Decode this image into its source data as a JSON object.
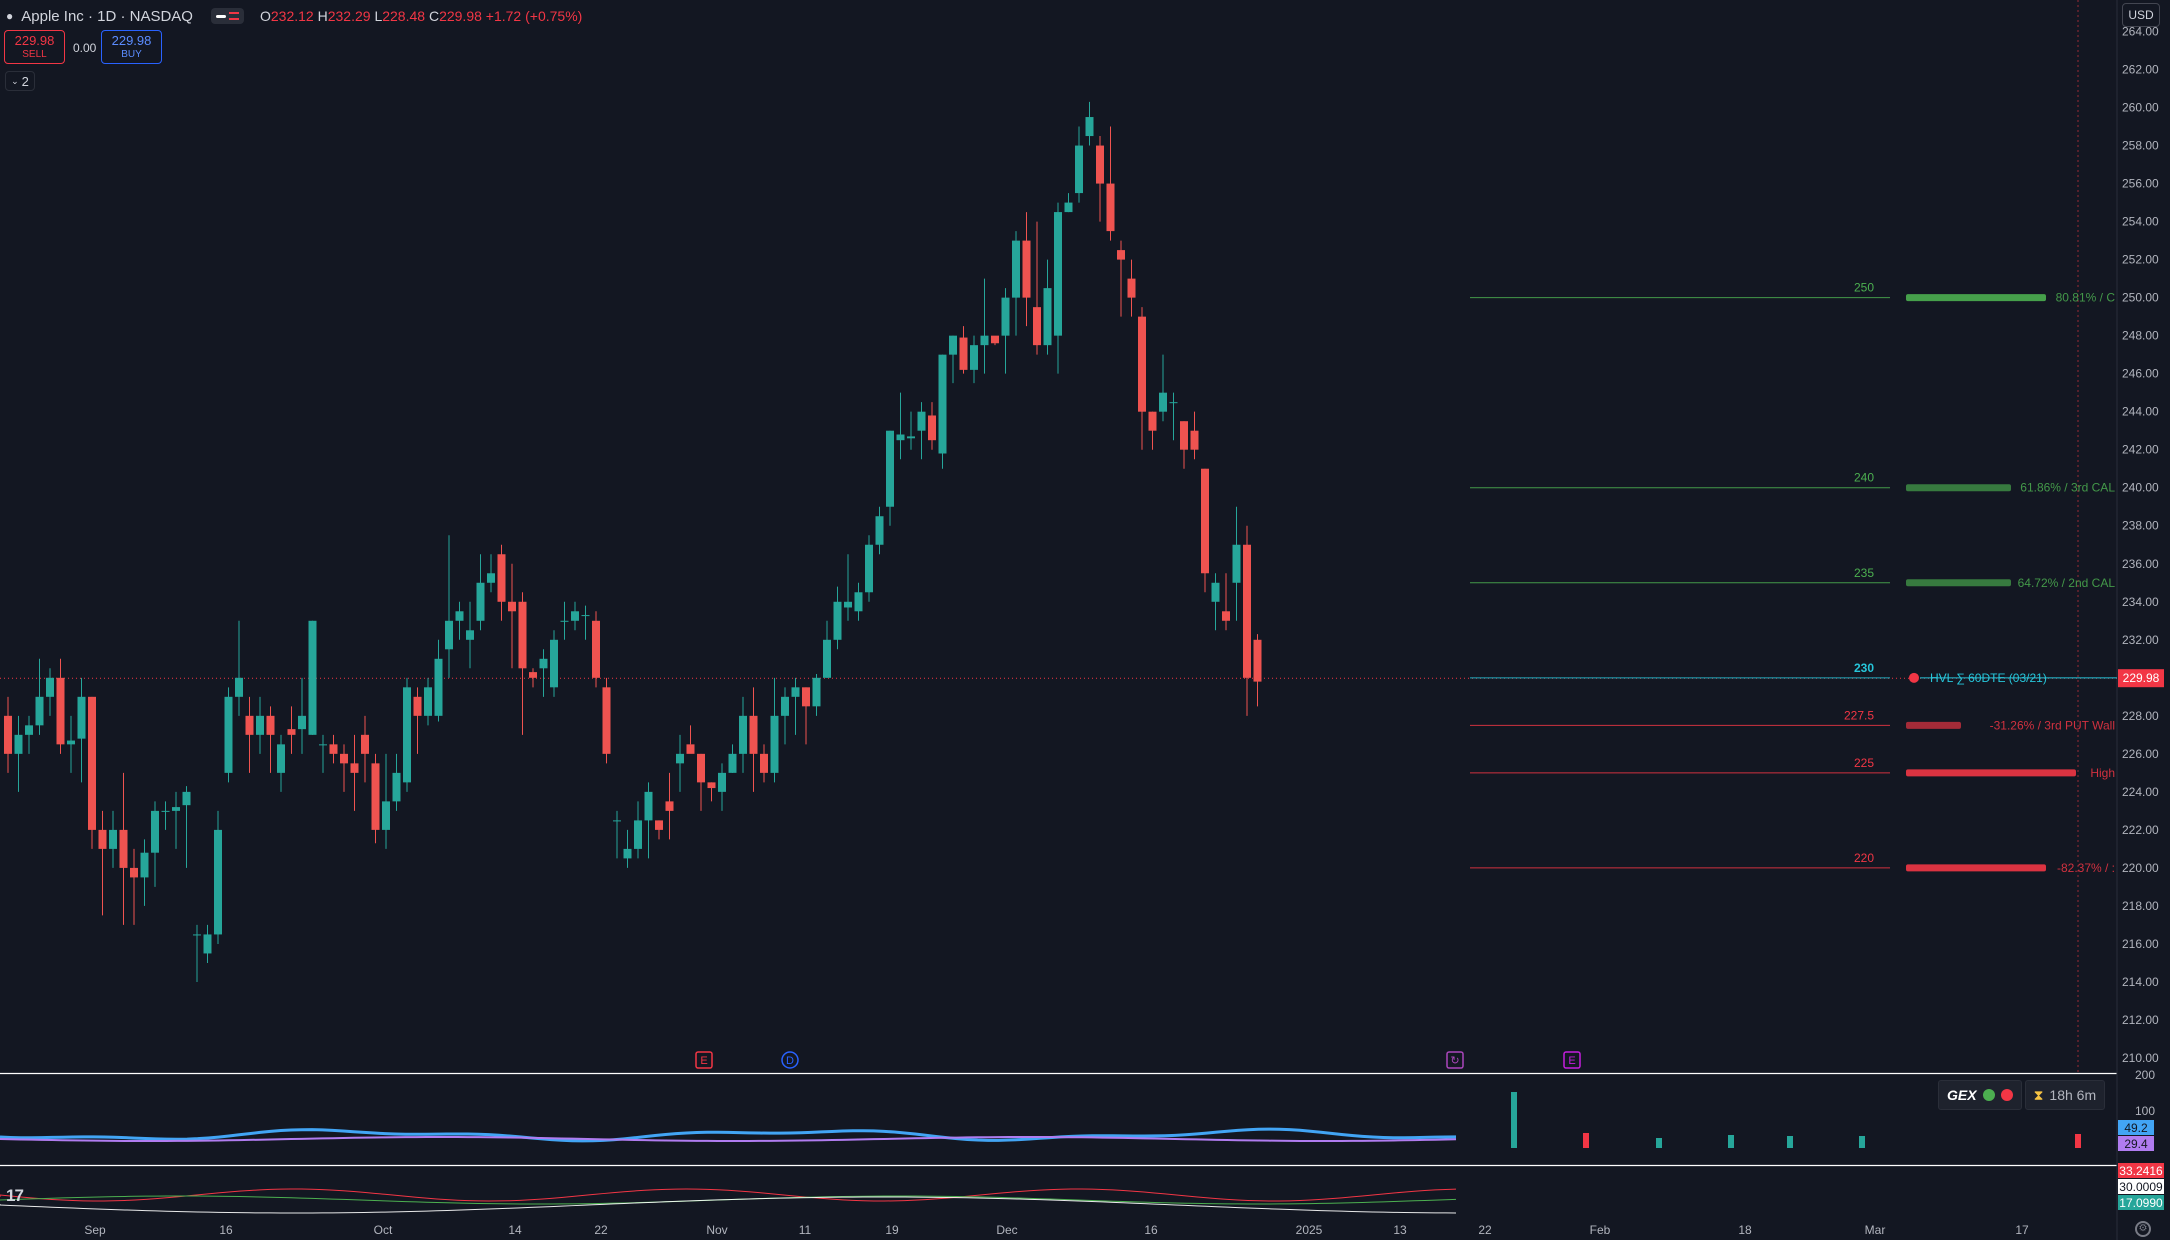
{
  "header": {
    "title": "Apple Inc · 1D · NASDAQ",
    "ohlc": {
      "o_label": "O",
      "o": "232.12",
      "h_label": "H",
      "h": "232.29",
      "l_label": "L",
      "l": "228.48",
      "c_label": "C",
      "c": "229.98",
      "change": "+1.72 (+0.75%)"
    }
  },
  "trade": {
    "sell_price": "229.98",
    "sell_label": "SELL",
    "spread": "0.00",
    "buy_price": "229.98",
    "buy_label": "BUY"
  },
  "indicators_collapse": {
    "count": "2"
  },
  "currency": "USD",
  "gex_panel": {
    "label": "GEX",
    "timer": "18h 6m",
    "icon_green": "green-dot",
    "icon_red": "red-dot"
  },
  "colors": {
    "up": "#26a69a",
    "down": "#ef5350",
    "background": "#131722",
    "price_line": "#f23645",
    "hvl": "#26c6da",
    "call_level": "#4caf50",
    "put_level": "#f23645"
  },
  "chart_data": {
    "type": "candlestick",
    "symbol": "Apple Inc · 1D · NASDAQ",
    "y_ticks": [
      210,
      212,
      214,
      216,
      218,
      220,
      222,
      224,
      226,
      228,
      230,
      232,
      234,
      236,
      238,
      240,
      242,
      244,
      246,
      248,
      250,
      252,
      254,
      256,
      258,
      260,
      262,
      264
    ],
    "ylim": [
      209.2,
      265
    ],
    "x_ticks": [
      "Sep",
      "16",
      "Oct",
      "14",
      "22",
      "Nov",
      "11",
      "19",
      "Dec",
      "16",
      "2025",
      "13",
      "22",
      "Feb",
      "18",
      "Mar",
      "17"
    ],
    "last_price": "229.98",
    "candles": [
      [
        228,
        226,
        229,
        225
      ],
      [
        226,
        227,
        228,
        224
      ],
      [
        227,
        227.5,
        228,
        226
      ],
      [
        227.5,
        229,
        231,
        227
      ],
      [
        229,
        230,
        230.5,
        228
      ],
      [
        230,
        226.5,
        231,
        226
      ],
      [
        226.5,
        226.7,
        228,
        225
      ],
      [
        226.8,
        229,
        230,
        224.5
      ],
      [
        229,
        222,
        229,
        221
      ],
      [
        222,
        221,
        223,
        217.5
      ],
      [
        221,
        222,
        223,
        220
      ],
      [
        222,
        220,
        225,
        217
      ],
      [
        220,
        219.5,
        221,
        217
      ],
      [
        219.5,
        220.8,
        221.5,
        218
      ],
      [
        220.8,
        223,
        223.5,
        219
      ],
      [
        223,
        223,
        223.5,
        222
      ],
      [
        223,
        223.2,
        224,
        221
      ],
      [
        223.3,
        224,
        224.3,
        220
      ],
      [
        216.5,
        216.5,
        217,
        214
      ],
      [
        215.5,
        216.5,
        217,
        215
      ],
      [
        216.5,
        222,
        223,
        216
      ],
      [
        225,
        229,
        229.5,
        224.5
      ],
      [
        229,
        230,
        233,
        228
      ],
      [
        228,
        227,
        229,
        225
      ],
      [
        227,
        228,
        229,
        226
      ],
      [
        228,
        227,
        228.5,
        225
      ],
      [
        225,
        226.5,
        227,
        224
      ],
      [
        227.3,
        227,
        228.5,
        226
      ],
      [
        227.3,
        228,
        230,
        226
      ],
      [
        227,
        233,
        233,
        227
      ],
      [
        226.5,
        226.5,
        227,
        225
      ],
      [
        226.5,
        226,
        227,
        225.5
      ],
      [
        226,
        225.5,
        226.5,
        224
      ],
      [
        225.5,
        225,
        227,
        223
      ],
      [
        227,
        226,
        228,
        224.5
      ],
      [
        225.5,
        222,
        226,
        221.3
      ],
      [
        222,
        223.5,
        226,
        221
      ],
      [
        223.5,
        225,
        226,
        223
      ],
      [
        224.5,
        229.5,
        230,
        224
      ],
      [
        229,
        228,
        229.5,
        226
      ],
      [
        228,
        229.5,
        230,
        227.5
      ],
      [
        228,
        231,
        232,
        227.7
      ],
      [
        231.5,
        233,
        237.5,
        230
      ],
      [
        233,
        233.5,
        234,
        232
      ],
      [
        232,
        232.5,
        234,
        230.5
      ],
      [
        233,
        235,
        236.5,
        232.5
      ],
      [
        235,
        235.5,
        236.5,
        234.5
      ],
      [
        236.5,
        234,
        237,
        233
      ],
      [
        234,
        233.5,
        236,
        230.5
      ],
      [
        234,
        230.5,
        234.5,
        227
      ],
      [
        230.3,
        230,
        230.5,
        229.5
      ],
      [
        230.5,
        231,
        231.5,
        229
      ],
      [
        229.5,
        232,
        232.5,
        229
      ],
      [
        233,
        233,
        234,
        232
      ],
      [
        233,
        233.5,
        234,
        232.5
      ],
      [
        233.3,
        233.3,
        233.8,
        232
      ],
      [
        233,
        230,
        233.5,
        229.5
      ],
      [
        229.5,
        226,
        230,
        225.5
      ],
      [
        222.5,
        222.5,
        223,
        220.5
      ],
      [
        220.5,
        221,
        222,
        220
      ],
      [
        221,
        222.5,
        223.5,
        220.5
      ],
      [
        222.5,
        224,
        224.5,
        220.5
      ],
      [
        222.5,
        222,
        222.5,
        221.5
      ],
      [
        223.5,
        223,
        225,
        221.5
      ],
      [
        225.5,
        226,
        227,
        224
      ],
      [
        226.5,
        226,
        227.5,
        226.5
      ],
      [
        226,
        224.5,
        226,
        223
      ],
      [
        224.5,
        224.2,
        224.5,
        223.5
      ],
      [
        224,
        225,
        225.5,
        223
      ],
      [
        225,
        226,
        226.5,
        225
      ],
      [
        226,
        228,
        229,
        225
      ],
      [
        228,
        226,
        229.5,
        224
      ],
      [
        226,
        225,
        226.5,
        224.5
      ],
      [
        225,
        228,
        230,
        224.5
      ],
      [
        228,
        229,
        229.5,
        226.5
      ],
      [
        229,
        229.5,
        230,
        227
      ],
      [
        229.5,
        228.5,
        229.5,
        226.5
      ],
      [
        228.5,
        230,
        230.2,
        228
      ],
      [
        230,
        232,
        233,
        230
      ],
      [
        232,
        234,
        234.8,
        231.5
      ],
      [
        233.7,
        234,
        236.5,
        233
      ],
      [
        233.5,
        234.5,
        235,
        233
      ],
      [
        234.5,
        237,
        237.5,
        234
      ],
      [
        237,
        238.5,
        239,
        236.5
      ],
      [
        239,
        243,
        243,
        238
      ],
      [
        242.5,
        242.8,
        245,
        241.5
      ],
      [
        242.6,
        242.7,
        244,
        242
      ],
      [
        243,
        244,
        244.5,
        241.5
      ],
      [
        243.8,
        242.5,
        244.5,
        242
      ],
      [
        241.8,
        247,
        247,
        241
      ],
      [
        247,
        248,
        248,
        245.5
      ],
      [
        247.9,
        246.2,
        248.5,
        246
      ],
      [
        246.2,
        247.5,
        248,
        245.5
      ],
      [
        247.5,
        248,
        251,
        246
      ],
      [
        248,
        247.6,
        247.7,
        247.5
      ],
      [
        248,
        250,
        250.5,
        246
      ],
      [
        250,
        253,
        253.5,
        248
      ],
      [
        253,
        250,
        254.5,
        248.5
      ],
      [
        249.5,
        247.5,
        254,
        247
      ],
      [
        247.5,
        250.5,
        252,
        247
      ],
      [
        248,
        254.5,
        255,
        246
      ],
      [
        254.5,
        255,
        255.5,
        254.5
      ],
      [
        255.5,
        258,
        259,
        255
      ],
      [
        258.5,
        259.5,
        260.3,
        258
      ],
      [
        258,
        256,
        258.5,
        254
      ],
      [
        256,
        253.5,
        259,
        253
      ],
      [
        252.5,
        252,
        253,
        249
      ],
      [
        251,
        250,
        252,
        249
      ],
      [
        249,
        244,
        249.5,
        242
      ],
      [
        244,
        243,
        244,
        242
      ],
      [
        244,
        245,
        247,
        243.5
      ],
      [
        244.5,
        244.5,
        245,
        242.5
      ],
      [
        243.5,
        242,
        243.5,
        241
      ],
      [
        243,
        242,
        244,
        241.5
      ],
      [
        241,
        235.5,
        241,
        234.5
      ],
      [
        234,
        235,
        235.5,
        232.5
      ],
      [
        233.5,
        233,
        235.5,
        232.5
      ],
      [
        235,
        237,
        239,
        233
      ],
      [
        237,
        230,
        238,
        228
      ],
      [
        232,
        229.8,
        232.3,
        228.5
      ]
    ],
    "levels": [
      {
        "strike": "250",
        "value": 250,
        "label": "80.81% / C",
        "kind": "call"
      },
      {
        "strike": "240",
        "value": 240,
        "label": "61.86% / 3rd CAL",
        "kind": "call"
      },
      {
        "strike": "235",
        "value": 235,
        "label": "64.72% / 2nd CAL",
        "kind": "call"
      },
      {
        "strike": "230",
        "value": 230,
        "label": "HVL ∑ 60DTE (03/21)",
        "kind": "hvl"
      },
      {
        "strike": "227.5",
        "value": 227.5,
        "label": "-31.26% / 3rd PUT Wall",
        "kind": "put"
      },
      {
        "strike": "225",
        "value": 225,
        "label": "High",
        "kind": "put"
      },
      {
        "strike": "220",
        "value": 220,
        "label": "-82.37% / :",
        "kind": "put"
      }
    ],
    "event_markers": [
      {
        "label": "E",
        "color": "#f23645"
      },
      {
        "label": "D",
        "color": "#2962ff"
      },
      {
        "label": "↻",
        "color": "#ab47bc"
      },
      {
        "label": "E",
        "color": "#c51ede"
      }
    ],
    "osc1": {
      "y_ticks": [
        "200",
        "100"
      ],
      "values": [
        "49.2",
        "29.4"
      ],
      "value_colors": [
        "#42a5f5",
        "#b07cf0"
      ]
    },
    "osc2": {
      "values": [
        "33.2416",
        "30.0009",
        "17.0990"
      ],
      "value_colors": [
        "#f23645",
        "#ffffff",
        "#26a69a"
      ]
    }
  }
}
